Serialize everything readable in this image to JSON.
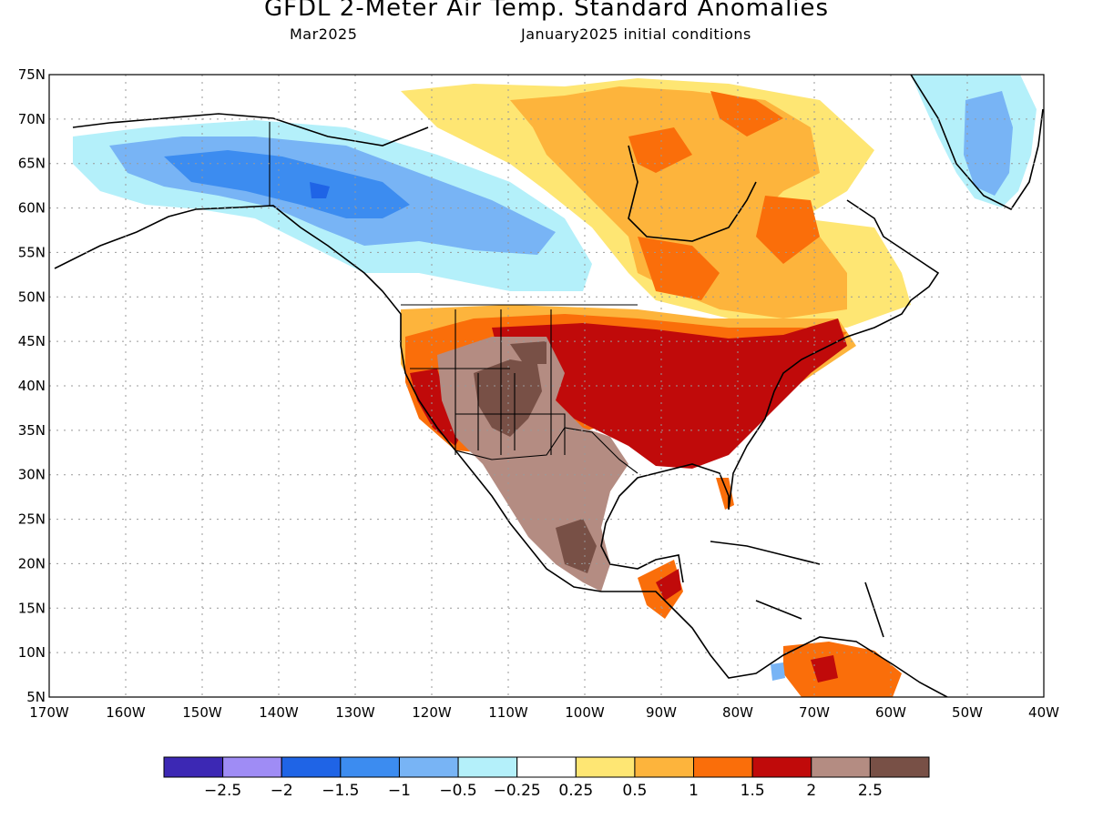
{
  "title": "GFDL 2-Meter Air Temp. Standard Anomalies",
  "subtitle_left": "Mar2025",
  "subtitle_right": "January2025 initial conditions",
  "lat_ticks": [
    "75N",
    "70N",
    "65N",
    "60N",
    "55N",
    "50N",
    "45N",
    "40N",
    "35N",
    "30N",
    "25N",
    "20N",
    "15N",
    "10N",
    "5N"
  ],
  "lon_ticks": [
    "170W",
    "160W",
    "150W",
    "140W",
    "130W",
    "120W",
    "110W",
    "100W",
    "90W",
    "80W",
    "70W",
    "60W",
    "50W",
    "40W"
  ],
  "colorbar": {
    "colors": [
      "#3c28b4",
      "#9f8cf5",
      "#1f64e6",
      "#3c8cf0",
      "#78b4f5",
      "#b4f0fa",
      "#ffffff",
      "#fee673",
      "#fdb43c",
      "#fa6e0a",
      "#c00a0a",
      "#b48c82",
      "#785046"
    ],
    "labels": [
      "-2.5",
      "-2",
      "-1.5",
      "-1",
      "-0.5",
      "-0.25",
      "0.25",
      "0.5",
      "1",
      "1.5",
      "2",
      "2.5"
    ]
  },
  "colors": {
    "land": "#ffffff",
    "ocean": "#ffffff",
    "grid": "#999999",
    "coast": "#000000"
  }
}
